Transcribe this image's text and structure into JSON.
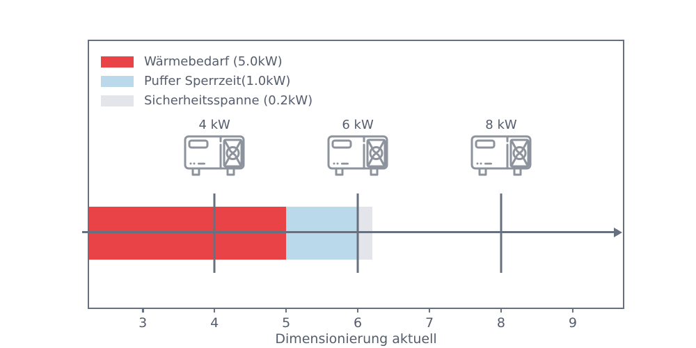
{
  "figure": {
    "background": "#FFFFFF",
    "line_color": "#67707E",
    "text_color": "#555D6C",
    "icon_color": "#8D939D"
  },
  "chart_data": {
    "type": "bar",
    "orientation": "horizontal-stacked",
    "title": "",
    "xlabel": "Dimensionierung aktuell",
    "ylabel": "",
    "xlim": [
      2.25,
      9.7
    ],
    "x_ticks": [
      3,
      4,
      5,
      6,
      7,
      8,
      9
    ],
    "grid": false,
    "axis_arrow": "right",
    "bar": {
      "start": 2.25,
      "segments": [
        {
          "name": "waermebedarf",
          "label": "Wärmebedarf (5.0kW)",
          "value_kw": 5.0,
          "from": 2.25,
          "to": 5.0,
          "color": "#EA4347"
        },
        {
          "name": "puffer-sperrzeit",
          "label": "Puffer Sperrzeit(1.0kW)",
          "value_kw": 1.0,
          "from": 5.0,
          "to": 6.0,
          "color": "#BAD9EA"
        },
        {
          "name": "sicherheitsspanne",
          "label": "Sicherheitsspanne (0.2kW)",
          "value_kw": 0.2,
          "from": 6.0,
          "to": 6.2,
          "color": "#E4E5EA"
        }
      ]
    },
    "markers": [
      {
        "label": "4 kW",
        "x": 4
      },
      {
        "label": "6 kW",
        "x": 6
      },
      {
        "label": "8 kW",
        "x": 8
      }
    ],
    "legend": {
      "position": "upper-left",
      "entries": [
        "Wärmebedarf (5.0kW)",
        "Puffer Sperrzeit(1.0kW)",
        "Sicherheitsspanne (0.2kW)"
      ]
    }
  }
}
